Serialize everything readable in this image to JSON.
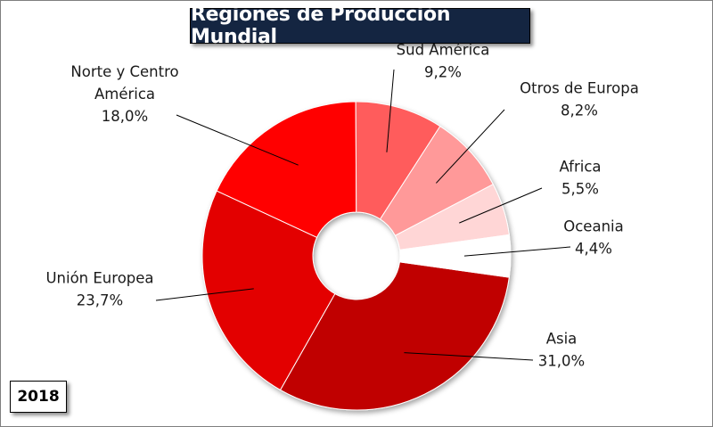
{
  "chart_data": {
    "type": "pie",
    "title": "Regiones de Producción Mundial",
    "year_label": "2018",
    "slices": [
      {
        "name": "Asia",
        "value": 31.0,
        "label_lines": [
          "Asia",
          "31,0%"
        ],
        "color": "#c00000"
      },
      {
        "name": "Unión Europea",
        "value": 23.7,
        "label_lines": [
          "Unión Europea",
          "23,7%"
        ],
        "color": "#e30000"
      },
      {
        "name": "Norte y Centro América",
        "value": 18.0,
        "label_lines": [
          "Norte y Centro",
          "América",
          "18,0%"
        ],
        "color": "#ff0000"
      },
      {
        "name": "Sud América",
        "value": 9.2,
        "label_lines": [
          "Sud América",
          "9,2%"
        ],
        "color": "#ff5b5b"
      },
      {
        "name": "Otros de Europa",
        "value": 8.2,
        "label_lines": [
          "Otros de Europa",
          "8,2%"
        ],
        "color": "#ff9999"
      },
      {
        "name": "Africa",
        "value": 5.5,
        "label_lines": [
          "Africa",
          "5,5%"
        ],
        "color": "#ffd6d6"
      },
      {
        "name": "Oceania",
        "value": 4.4,
        "label_lines": [
          "Oceania",
          "4,4%"
        ],
        "color": "#ffffff"
      }
    ]
  }
}
